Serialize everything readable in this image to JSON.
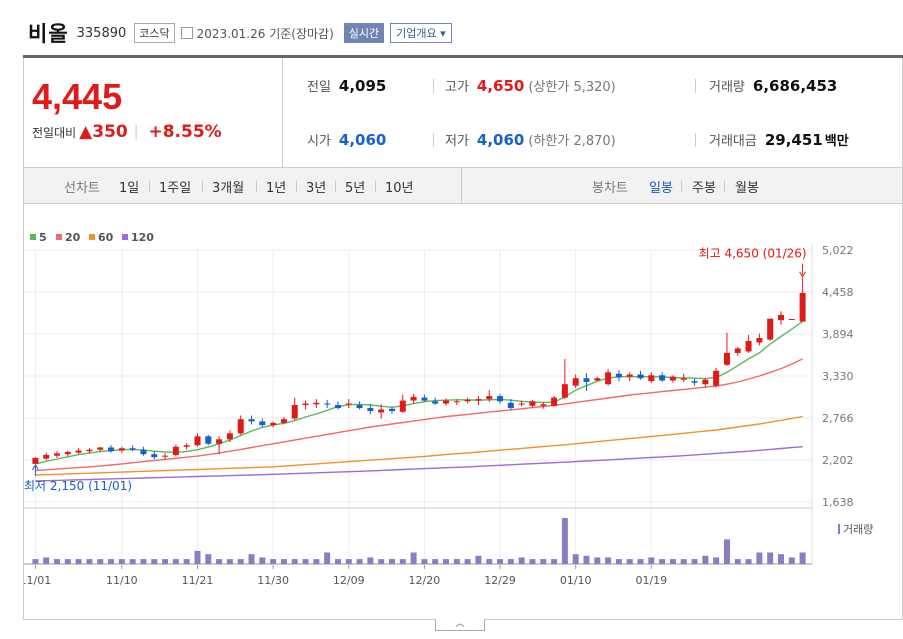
{
  "header": {
    "stock_name": "비올",
    "stock_code": "335890",
    "market": "코스닥",
    "date": "2023.01.26",
    "date_suffix": "기준(장마감)",
    "realtime_label": "실시간",
    "company_label": "기업개요 ▾"
  },
  "price": {
    "current": "4,445",
    "change_label": "전일대비",
    "change_arrow": "▲",
    "change_value": "350",
    "change_sep": "|",
    "change_pct": "+8.55%"
  },
  "stats": {
    "prev_label": "전일",
    "prev_value": "4,095",
    "open_label": "시가",
    "open_value": "4,060",
    "high_label": "고가",
    "high_value": "4,650",
    "upper_limit": "(상한가 5,320)",
    "low_label": "저가",
    "low_value": "4,060",
    "lower_limit": "(하한가 2,870)",
    "volume_label": "거래량",
    "volume_value": "6,686,453",
    "amount_label": "거래대금",
    "amount_value": "29,451",
    "amount_unit": "백만"
  },
  "tabs": {
    "line_label": "선차트",
    "line_items": [
      "1일",
      "1주일",
      "3개월",
      "1년",
      "3년",
      "5년",
      "10년"
    ],
    "candle_label": "봉차트",
    "candle_items": [
      "일봉",
      "주봉",
      "월봉"
    ],
    "candle_active": "일봉"
  },
  "colors": {
    "up": "#e01919",
    "down": "#1560c9",
    "ma5": "#5cb85c",
    "ma20": "#ef6a6a",
    "ma60": "#f0922e",
    "ma120": "#9b6dd0",
    "volume": "#8e7cc3"
  },
  "chart_data": {
    "type": "candlestick",
    "legend": [
      {
        "name": "5",
        "color": "#5cb85c"
      },
      {
        "name": "20",
        "color": "#ef6a6a"
      },
      {
        "name": "60",
        "color": "#f0922e"
      },
      {
        "name": "120",
        "color": "#9b6dd0"
      }
    ],
    "y_ticks": [
      "5,022",
      "4,458",
      "3,894",
      "3,330",
      "2,766",
      "2,202",
      "1,638"
    ],
    "ylim": [
      1638,
      5022
    ],
    "x_ticks": [
      {
        "label": "11/01",
        "index": 0
      },
      {
        "label": "11/10",
        "index": 8
      },
      {
        "label": "11/21",
        "index": 15
      },
      {
        "label": "11/30",
        "index": 22
      },
      {
        "label": "12/09",
        "index": 29
      },
      {
        "label": "12/20",
        "index": 36
      },
      {
        "label": "12/29",
        "index": 43
      },
      {
        "label": "01/10",
        "index": 50
      },
      {
        "label": "01/19",
        "index": 57
      }
    ],
    "high_annotation": "최고 4,650 (01/26)",
    "low_annotation": "최저 2,150 (11/01)",
    "volume_label": "거래량",
    "candles": [
      [
        2150,
        2240,
        2150,
        2230
      ],
      [
        2220,
        2300,
        2200,
        2270
      ],
      [
        2260,
        2320,
        2230,
        2290
      ],
      [
        2280,
        2330,
        2250,
        2310
      ],
      [
        2300,
        2360,
        2280,
        2330
      ],
      [
        2320,
        2360,
        2290,
        2340
      ],
      [
        2340,
        2380,
        2310,
        2370
      ],
      [
        2370,
        2400,
        2300,
        2320
      ],
      [
        2330,
        2380,
        2300,
        2360
      ],
      [
        2360,
        2400,
        2320,
        2340
      ],
      [
        2340,
        2380,
        2260,
        2280
      ],
      [
        2280,
        2320,
        2210,
        2240
      ],
      [
        2250,
        2290,
        2210,
        2260
      ],
      [
        2270,
        2410,
        2250,
        2380
      ],
      [
        2380,
        2430,
        2340,
        2400
      ],
      [
        2400,
        2560,
        2380,
        2520
      ],
      [
        2520,
        2540,
        2400,
        2420
      ],
      [
        2420,
        2520,
        2280,
        2480
      ],
      [
        2480,
        2600,
        2440,
        2560
      ],
      [
        2560,
        2800,
        2540,
        2750
      ],
      [
        2750,
        2800,
        2680,
        2720
      ],
      [
        2720,
        2760,
        2640,
        2670
      ],
      [
        2670,
        2720,
        2640,
        2700
      ],
      [
        2700,
        2780,
        2680,
        2750
      ],
      [
        2760,
        3040,
        2740,
        2940
      ],
      [
        2940,
        3000,
        2880,
        2960
      ],
      [
        2950,
        3020,
        2900,
        2970
      ],
      [
        2960,
        3010,
        2900,
        2950
      ],
      [
        2940,
        2990,
        2880,
        2900
      ],
      [
        2950,
        3020,
        2900,
        2960
      ],
      [
        2940,
        2990,
        2880,
        2900
      ],
      [
        2900,
        2950,
        2820,
        2860
      ],
      [
        2840,
        2950,
        2760,
        2880
      ],
      [
        2890,
        2920,
        2820,
        2860
      ],
      [
        2850,
        3080,
        2830,
        3000
      ],
      [
        3000,
        3090,
        2960,
        3050
      ],
      [
        3040,
        3080,
        2990,
        3000
      ],
      [
        2990,
        3040,
        2940,
        2960
      ],
      [
        2960,
        3030,
        2930,
        3000
      ],
      [
        2980,
        3020,
        2940,
        2990
      ],
      [
        2990,
        3040,
        2960,
        3010
      ],
      [
        3000,
        3060,
        2940,
        3020
      ],
      [
        3020,
        3140,
        2980,
        3060
      ],
      [
        3060,
        3090,
        2960,
        2990
      ],
      [
        2970,
        3020,
        2870,
        2900
      ],
      [
        2950,
        3000,
        2920,
        2960
      ],
      [
        2930,
        3010,
        2910,
        2990
      ],
      [
        2930,
        2980,
        2890,
        2950
      ],
      [
        2930,
        3060,
        2920,
        3040
      ],
      [
        3040,
        3560,
        3020,
        3220
      ],
      [
        3200,
        3350,
        3170,
        3300
      ],
      [
        3300,
        3370,
        3130,
        3250
      ],
      [
        3270,
        3320,
        3260,
        3300
      ],
      [
        3220,
        3420,
        3200,
        3380
      ],
      [
        3360,
        3410,
        3260,
        3310
      ],
      [
        3320,
        3380,
        3260,
        3350
      ],
      [
        3350,
        3400,
        3280,
        3300
      ],
      [
        3260,
        3380,
        3240,
        3340
      ],
      [
        3340,
        3380,
        3250,
        3270
      ],
      [
        3270,
        3340,
        3240,
        3320
      ],
      [
        3280,
        3360,
        3250,
        3300
      ],
      [
        3260,
        3300,
        3200,
        3240
      ],
      [
        3220,
        3300,
        3180,
        3280
      ],
      [
        3200,
        3440,
        3180,
        3400
      ],
      [
        3480,
        3910,
        3470,
        3640
      ],
      [
        3640,
        3720,
        3600,
        3700
      ],
      [
        3660,
        3880,
        3640,
        3800
      ],
      [
        3780,
        3900,
        3740,
        3840
      ],
      [
        3820,
        4100,
        3800,
        4100
      ],
      [
        4080,
        4200,
        4020,
        4150
      ],
      [
        4095,
        4095,
        4095,
        4095
      ],
      [
        4060,
        4650,
        4060,
        4445
      ]
    ],
    "ma5": [
      2150,
      2185,
      2215,
      2245,
      2275,
      2295,
      2315,
      2330,
      2340,
      2345,
      2335,
      2320,
      2310,
      2305,
      2315,
      2340,
      2375,
      2420,
      2470,
      2530,
      2590,
      2640,
      2670,
      2695,
      2730,
      2780,
      2820,
      2870,
      2920,
      2945,
      2950,
      2940,
      2925,
      2910,
      2930,
      2960,
      2985,
      3000,
      3005,
      3010,
      3010,
      3005,
      3010,
      3015,
      3005,
      2990,
      2980,
      2975,
      2980,
      3050,
      3140,
      3200,
      3260,
      3300,
      3320,
      3320,
      3320,
      3320,
      3315,
      3310,
      3305,
      3300,
      3295,
      3310,
      3380,
      3470,
      3560,
      3640,
      3760,
      3860,
      3960,
      4060
    ],
    "ma20": [
      2060,
      2070,
      2080,
      2090,
      2100,
      2110,
      2120,
      2135,
      2150,
      2165,
      2180,
      2195,
      2210,
      2225,
      2240,
      2255,
      2275,
      2295,
      2320,
      2345,
      2370,
      2395,
      2420,
      2445,
      2470,
      2495,
      2520,
      2545,
      2570,
      2595,
      2620,
      2645,
      2665,
      2685,
      2705,
      2725,
      2745,
      2765,
      2785,
      2800,
      2815,
      2830,
      2845,
      2860,
      2875,
      2890,
      2905,
      2920,
      2935,
      2955,
      2975,
      2995,
      3015,
      3035,
      3055,
      3075,
      3090,
      3105,
      3120,
      3135,
      3150,
      3165,
      3180,
      3195,
      3220,
      3250,
      3290,
      3330,
      3380,
      3430,
      3490,
      3560
    ],
    "ma60": [
      2000,
      2005,
      2010,
      2015,
      2020,
      2025,
      2030,
      2035,
      2040,
      2045,
      2050,
      2055,
      2060,
      2065,
      2070,
      2075,
      2080,
      2085,
      2090,
      2095,
      2100,
      2105,
      2110,
      2120,
      2130,
      2140,
      2150,
      2160,
      2170,
      2180,
      2190,
      2200,
      2210,
      2220,
      2230,
      2240,
      2250,
      2262,
      2274,
      2286,
      2298,
      2310,
      2322,
      2334,
      2346,
      2358,
      2370,
      2382,
      2394,
      2406,
      2420,
      2434,
      2448,
      2462,
      2476,
      2490,
      2504,
      2518,
      2532,
      2546,
      2560,
      2575,
      2590,
      2605,
      2625,
      2645,
      2665,
      2685,
      2710,
      2735,
      2760,
      2785
    ],
    "ma120": [
      1920,
      1924,
      1928,
      1932,
      1936,
      1940,
      1944,
      1948,
      1952,
      1956,
      1960,
      1964,
      1968,
      1972,
      1976,
      1980,
      1984,
      1988,
      1992,
      1996,
      2000,
      2005,
      2010,
      2015,
      2020,
      2025,
      2030,
      2035,
      2040,
      2045,
      2050,
      2056,
      2062,
      2068,
      2074,
      2080,
      2086,
      2092,
      2098,
      2104,
      2110,
      2117,
      2124,
      2131,
      2138,
      2145,
      2152,
      2159,
      2166,
      2173,
      2180,
      2188,
      2196,
      2204,
      2212,
      2220,
      2228,
      2236,
      2244,
      2252,
      2260,
      2270,
      2280,
      2290,
      2300,
      2310,
      2320,
      2332,
      2344,
      2356,
      2368,
      2380
    ],
    "volume": [
      3,
      4,
      3,
      3,
      3,
      3,
      3,
      3,
      3,
      3,
      3,
      3,
      3,
      3,
      3,
      8,
      6,
      3,
      3,
      3,
      6,
      4,
      3,
      3,
      3,
      3,
      3,
      7,
      3,
      3,
      3,
      4,
      3,
      3,
      3,
      7,
      3,
      3,
      3,
      3,
      3,
      5,
      3,
      3,
      3,
      4,
      3,
      3,
      3,
      28,
      6,
      5,
      4,
      4,
      3,
      3,
      3,
      4,
      3,
      3,
      3,
      3,
      5,
      4,
      15,
      3,
      3,
      7,
      7,
      6,
      4,
      7
    ]
  }
}
